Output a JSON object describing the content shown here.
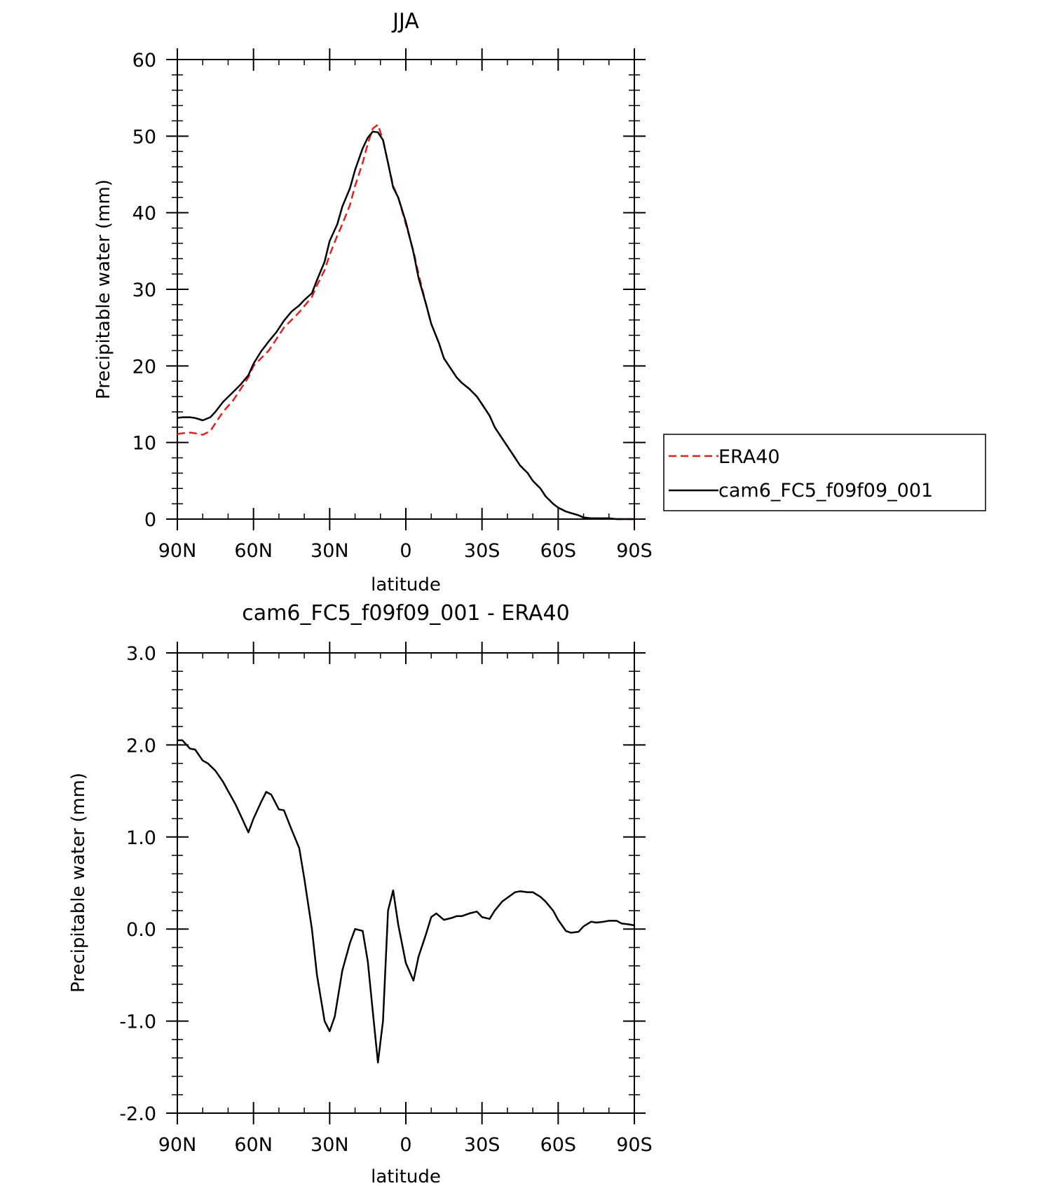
{
  "colors": {
    "ERA40": "#e02020",
    "model": "#000000",
    "axis": "#000000"
  },
  "chart_data": [
    {
      "type": "line",
      "title": "JJA",
      "xlabel": "latitude",
      "ylabel": "Precipitable water (mm)",
      "xlim": [
        90,
        -90
      ],
      "ylim": [
        0,
        60
      ],
      "xticks": [
        90,
        60,
        30,
        0,
        -30,
        -60,
        -90
      ],
      "xtick_labels": [
        "90N",
        "60N",
        "30N",
        "0",
        "30S",
        "60S",
        "90S"
      ],
      "yticks": [
        0,
        10,
        20,
        30,
        40,
        50,
        60
      ],
      "ytick_labels": [
        "0",
        "10",
        "20",
        "30",
        "40",
        "50",
        "60"
      ],
      "grid": false,
      "legend": "right",
      "series": [
        {
          "name": "ERA40",
          "style": "dashed",
          "x": [
            90,
            88,
            85,
            83,
            80,
            77,
            75,
            72,
            68,
            65,
            62,
            60,
            57,
            54,
            51,
            48,
            45,
            42,
            40,
            37,
            35,
            32,
            30,
            27,
            25,
            22,
            20,
            17,
            15,
            13,
            11,
            9,
            7,
            5,
            3,
            0,
            -3,
            -5,
            -8,
            -10,
            -13,
            -15,
            -18,
            -20,
            -22,
            -25,
            -28,
            -30,
            -33,
            -35,
            -38,
            -40,
            -43,
            -45,
            -48,
            -50,
            -53,
            -55,
            -58,
            -60,
            -63,
            -65,
            -68,
            -70,
            -73,
            -75,
            -78,
            -80,
            -83,
            -85,
            -88,
            -90
          ],
          "y": [
            11.1,
            11.2,
            11.3,
            11.2,
            11.0,
            11.5,
            12.5,
            14.0,
            15.5,
            17.0,
            18.5,
            20.0,
            21.0,
            22.0,
            23.5,
            25.0,
            26.0,
            27.0,
            27.8,
            29.0,
            30.5,
            32.5,
            34.5,
            37.0,
            38.5,
            41.0,
            43.5,
            46.5,
            49.0,
            51.0,
            51.5,
            49.5,
            46.5,
            43.5,
            42.0,
            38.5,
            35.0,
            32.0,
            28.0,
            25.5,
            23.0,
            21.0,
            19.5,
            18.5,
            17.8,
            17.0,
            16.0,
            15.0,
            13.5,
            12.0,
            10.5,
            9.5,
            8.0,
            7.0,
            6.0,
            5.0,
            4.0,
            3.0,
            2.0,
            1.5,
            1.0,
            0.8,
            0.5,
            0.2,
            0.1,
            0.1,
            0.1,
            0.1,
            0.0,
            0.0,
            0.0,
            0.0
          ]
        },
        {
          "name": "cam6_FC5_f09f09_001",
          "style": "solid",
          "x": [
            90,
            88,
            85,
            83,
            80,
            77,
            75,
            72,
            68,
            65,
            62,
            60,
            57,
            54,
            51,
            48,
            45,
            42,
            40,
            37,
            35,
            32,
            30,
            27,
            25,
            22,
            20,
            17,
            15,
            13,
            11,
            9,
            7,
            5,
            3,
            0,
            -3,
            -5,
            -8,
            -10,
            -13,
            -15,
            -18,
            -20,
            -22,
            -25,
            -28,
            -30,
            -33,
            -35,
            -38,
            -40,
            -43,
            -45,
            -48,
            -50,
            -53,
            -55,
            -58,
            -60,
            -63,
            -65,
            -68,
            -70,
            -73,
            -75,
            -78,
            -80,
            -83,
            -85,
            -88,
            -90
          ],
          "y": [
            13.2,
            13.3,
            13.3,
            13.2,
            12.9,
            13.3,
            14.0,
            15.3,
            16.6,
            17.6,
            18.8,
            20.3,
            21.9,
            23.2,
            24.4,
            25.9,
            27.1,
            27.9,
            28.6,
            29.5,
            31.2,
            33.6,
            36.3,
            38.5,
            40.8,
            43.2,
            45.6,
            48.4,
            49.8,
            50.6,
            50.5,
            49.5,
            46.5,
            43.3,
            42.0,
            38.8,
            34.8,
            31.5,
            28.0,
            25.5,
            23.0,
            21.0,
            19.5,
            18.5,
            17.8,
            17.0,
            16.0,
            15.0,
            13.5,
            12.0,
            10.5,
            9.5,
            8.0,
            7.0,
            6.0,
            5.0,
            4.0,
            3.0,
            2.0,
            1.5,
            1.0,
            0.8,
            0.5,
            0.2,
            0.1,
            0.1,
            0.1,
            0.1,
            0.0,
            0.0,
            0.0,
            0.0
          ]
        }
      ]
    },
    {
      "type": "line",
      "title": "cam6_FC5_f09f09_001 - ERA40",
      "xlabel": "latitude",
      "ylabel": "Precipitable water (mm)",
      "xlim": [
        90,
        -90
      ],
      "ylim": [
        -2.0,
        3.0
      ],
      "xticks": [
        90,
        60,
        30,
        0,
        -30,
        -60,
        -90
      ],
      "xtick_labels": [
        "90N",
        "60N",
        "30N",
        "0",
        "30S",
        "60S",
        "90S"
      ],
      "yticks": [
        -2.0,
        -1.0,
        0.0,
        1.0,
        2.0,
        3.0
      ],
      "ytick_labels": [
        "-2.0",
        "-1.0",
        "0.0",
        "1.0",
        "2.0",
        "3.0"
      ],
      "grid": false,
      "series": [
        {
          "style": "solid",
          "x": [
            90,
            88,
            85,
            83,
            80,
            78,
            75,
            72,
            70,
            67,
            65,
            62,
            60,
            57,
            55,
            53,
            50,
            48,
            45,
            42,
            40,
            37,
            35,
            32,
            30,
            28,
            25,
            22,
            20,
            17,
            15,
            13,
            11,
            9,
            7,
            5,
            3,
            0,
            -3,
            -5,
            -8,
            -10,
            -12,
            -15,
            -18,
            -20,
            -22,
            -25,
            -28,
            -30,
            -33,
            -35,
            -38,
            -40,
            -43,
            -45,
            -48,
            -50,
            -53,
            -55,
            -58,
            -60,
            -63,
            -65,
            -68,
            -70,
            -73,
            -75,
            -78,
            -80,
            -83,
            -85,
            -88,
            -90
          ],
          "y": [
            2.05,
            2.05,
            1.96,
            1.95,
            1.83,
            1.8,
            1.72,
            1.6,
            1.5,
            1.35,
            1.23,
            1.05,
            1.2,
            1.38,
            1.49,
            1.46,
            1.3,
            1.29,
            1.08,
            0.88,
            0.55,
            0.0,
            -0.5,
            -1.0,
            -1.11,
            -0.95,
            -0.45,
            -0.15,
            0.0,
            -0.02,
            -0.35,
            -0.9,
            -1.45,
            -1.0,
            0.2,
            0.42,
            0.05,
            -0.37,
            -0.56,
            -0.3,
            -0.05,
            0.13,
            0.17,
            0.1,
            0.12,
            0.14,
            0.14,
            0.17,
            0.19,
            0.13,
            0.11,
            0.2,
            0.3,
            0.34,
            0.4,
            0.41,
            0.4,
            0.4,
            0.35,
            0.3,
            0.2,
            0.1,
            -0.02,
            -0.04,
            -0.03,
            0.03,
            0.08,
            0.07,
            0.08,
            0.09,
            0.09,
            0.06,
            0.05,
            0.04
          ]
        }
      ]
    }
  ]
}
